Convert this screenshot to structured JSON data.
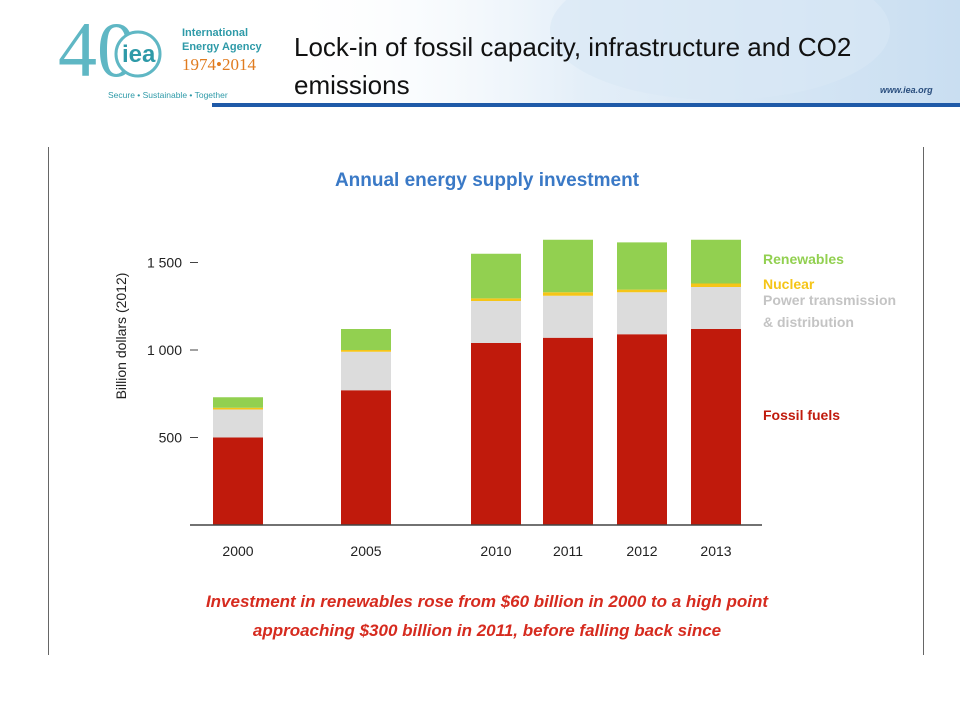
{
  "header": {
    "slide_title": "Lock-in of fossil capacity, infrastructure and CO2 emissions",
    "logo": {
      "number": "40",
      "name": "iea",
      "org_line1": "International",
      "org_line2": "Energy Agency",
      "years": "1974•2014",
      "tagline": "Secure • Sustainable • Together"
    },
    "url": "www.iea.org"
  },
  "colors": {
    "fossil": "#c01a0c",
    "power": "#dcdcdc",
    "nuclear": "#f5c518",
    "renewables": "#92d050",
    "title_blue": "#3a79c6",
    "caption_red": "#d62b1f",
    "header_blue": "#1f5aa8"
  },
  "chart_data": {
    "type": "bar",
    "stacked": true,
    "title": "Annual energy supply investment",
    "ylabel": "Billion dollars (2012)",
    "xlabel": "",
    "ylim": [
      0,
      1700
    ],
    "yticks": [
      500,
      1000,
      1500
    ],
    "ytick_labels": [
      "500",
      "1 000",
      "1 500"
    ],
    "grid": false,
    "legend_position": "right",
    "categories": [
      "2000",
      "2005",
      "2010",
      "2011",
      "2012",
      "2013"
    ],
    "series": [
      {
        "name": "Fossil fuels",
        "key": "fossil",
        "values": [
          500,
          770,
          1040,
          1070,
          1090,
          1120
        ]
      },
      {
        "name": "Power transmission & distribution",
        "key": "power",
        "values": [
          160,
          220,
          240,
          240,
          240,
          240
        ]
      },
      {
        "name": "Nuclear",
        "key": "nuclear",
        "values": [
          10,
          10,
          15,
          20,
          15,
          20
        ]
      },
      {
        "name": "Renewables",
        "key": "renewables",
        "values": [
          60,
          120,
          255,
          300,
          270,
          250
        ]
      }
    ],
    "legend": [
      {
        "key": "renewables",
        "lines": [
          "Renewables"
        ]
      },
      {
        "key": "nuclear",
        "lines": [
          "Nuclear"
        ]
      },
      {
        "key": "power",
        "lines": [
          "Power transmission",
          "& distribution"
        ]
      },
      {
        "key": "fossil",
        "lines": [
          "Fossil fuels"
        ]
      }
    ],
    "caption_lines": [
      "Investment in renewables rose from $60 billion in 2000 to a high point",
      "approaching $300 billion in 2011, before falling back since"
    ]
  }
}
